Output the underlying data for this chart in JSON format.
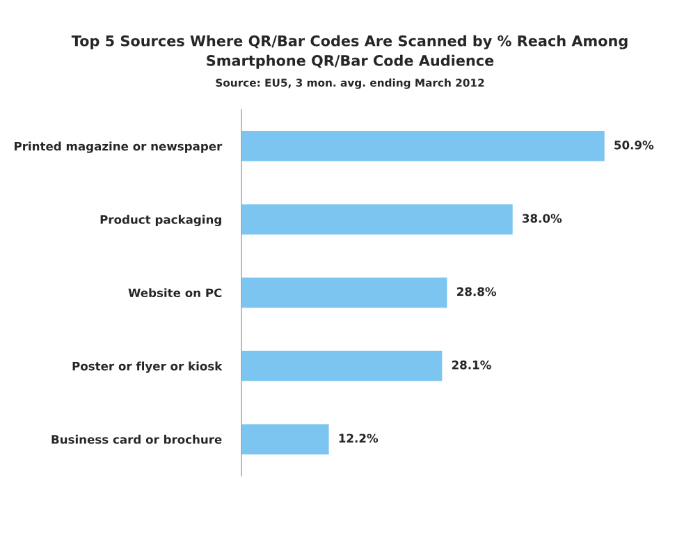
{
  "chart_data": {
    "type": "bar",
    "orientation": "horizontal",
    "title": "Top 5 Sources Where QR/Bar Codes Are Scanned by % Reach Among\nSmartphone QR/Bar Code Audience",
    "subtitle": "Source: EU5, 3 mon. avg. ending March 2012",
    "categories": [
      "Printed magazine or newspaper",
      "Product packaging",
      "Website on PC",
      "Poster or flyer or kiosk",
      "Business card or brochure"
    ],
    "values": [
      50.9,
      38.0,
      28.8,
      28.1,
      12.2
    ],
    "value_labels": [
      "50.9%",
      "38.0%",
      "28.8%",
      "28.1%",
      "12.2%"
    ],
    "color": "#7cc5f0",
    "grid": false,
    "legend": false
  }
}
